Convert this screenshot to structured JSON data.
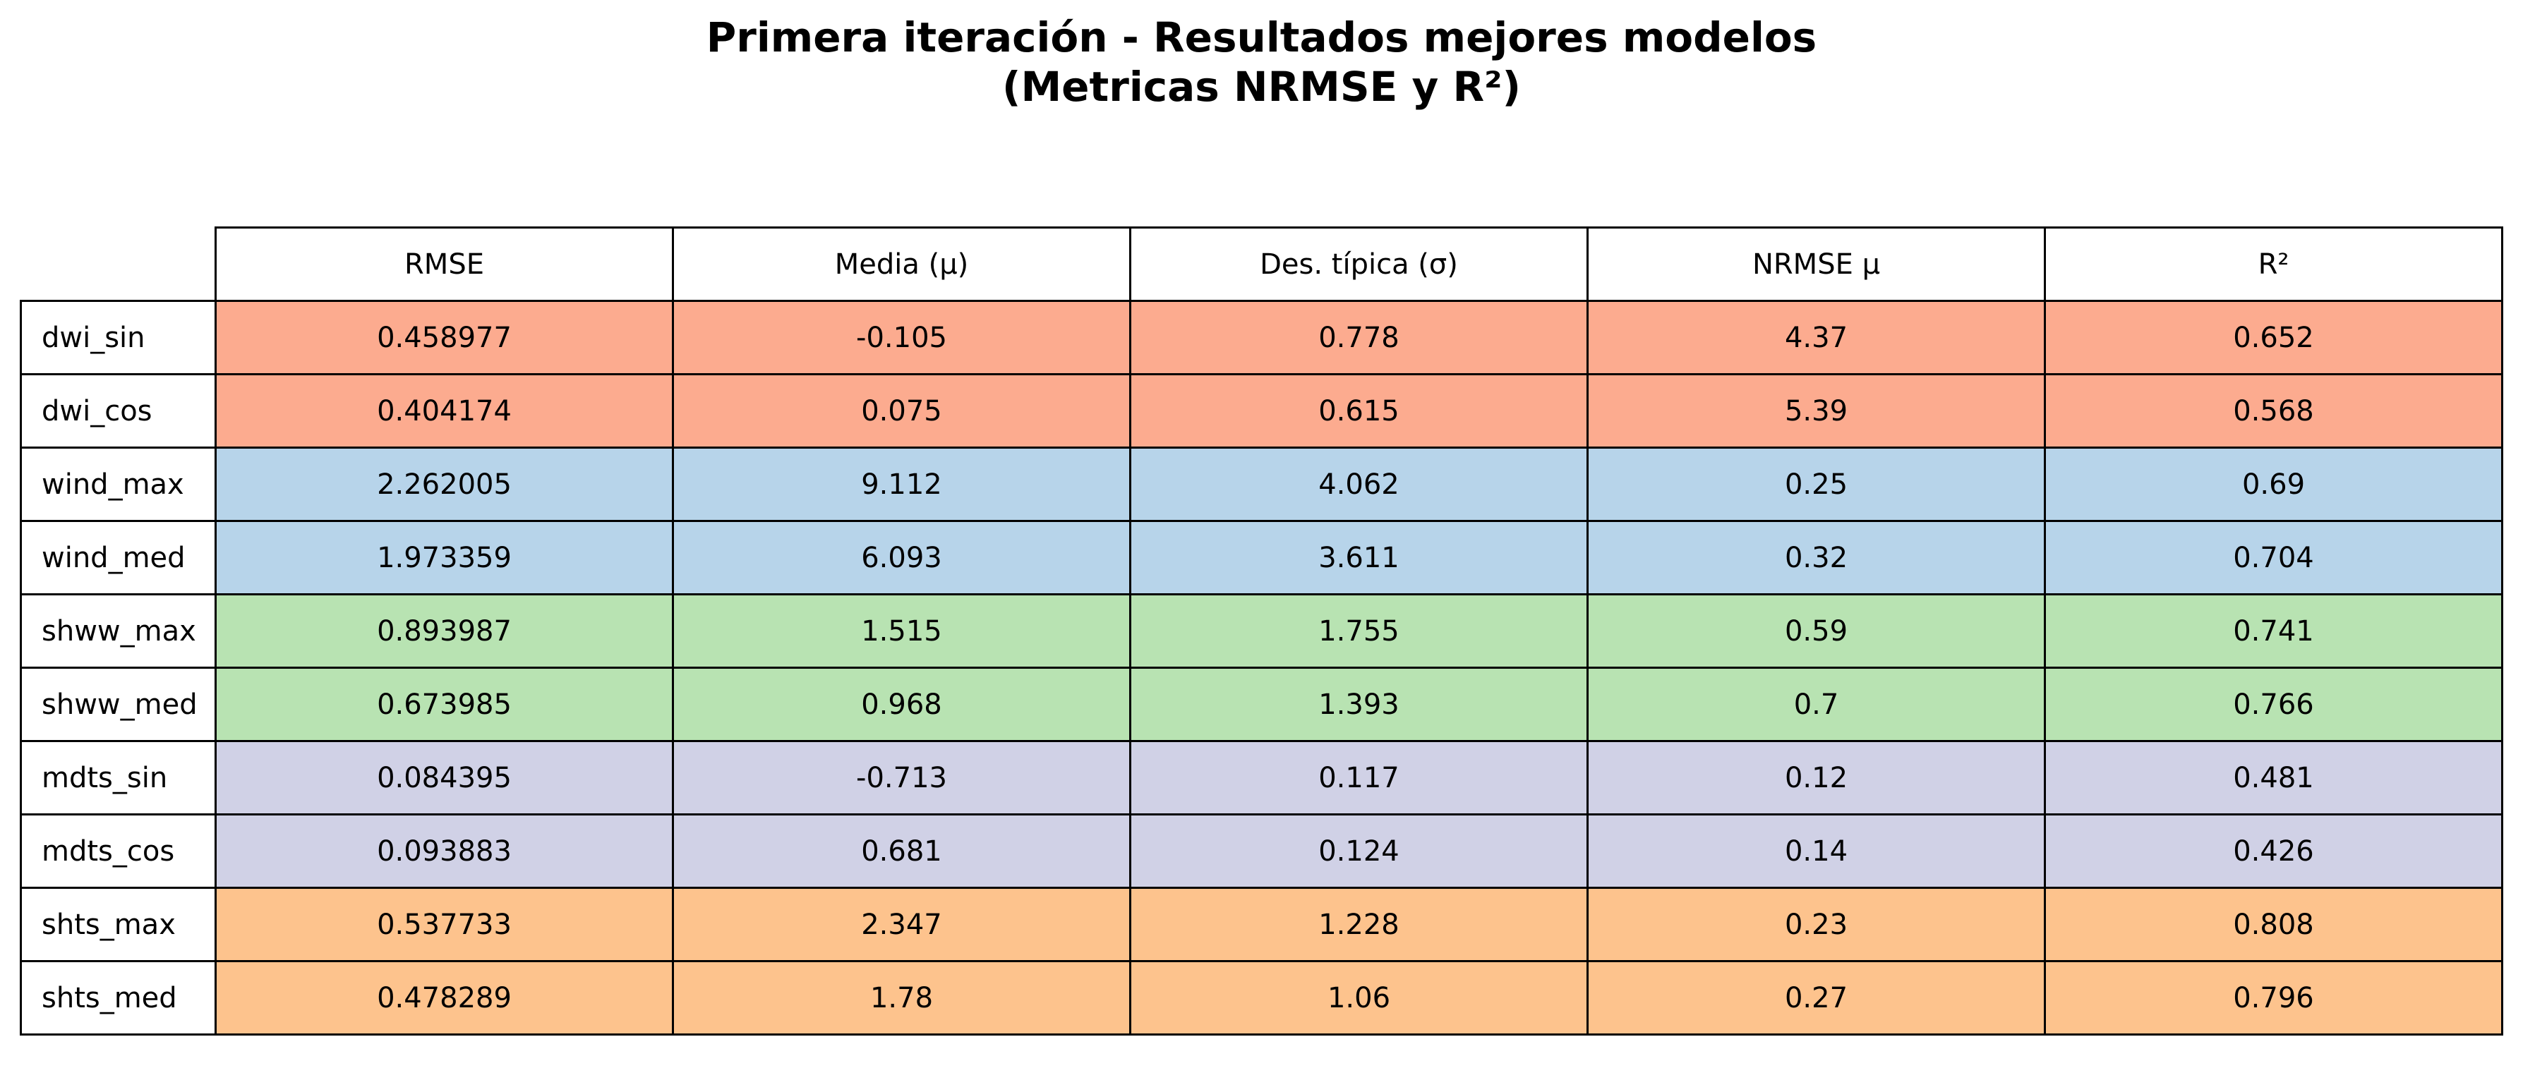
{
  "chart_data": {
    "type": "table",
    "title_line1": "Primera iteración - Resultados mejores modelos",
    "title_line2": "(Metricas NRMSE y R²)",
    "columns": [
      "RMSE",
      "Media (μ)",
      "Des. típica (σ)",
      "NRMSE μ",
      "R²"
    ],
    "rows": [
      {
        "label": "dwi_sin",
        "color": "#fcab8f",
        "values": [
          "0.458977",
          "-0.105",
          "0.778",
          "4.37",
          "0.652"
        ]
      },
      {
        "label": "dwi_cos",
        "color": "#fcab8f",
        "values": [
          "0.404174",
          "0.075",
          "0.615",
          "5.39",
          "0.568"
        ]
      },
      {
        "label": "wind_max",
        "color": "#b7d4ea",
        "values": [
          "2.262005",
          "9.112",
          "4.062",
          "0.25",
          "0.69"
        ]
      },
      {
        "label": "wind_med",
        "color": "#b7d4ea",
        "values": [
          "1.973359",
          "6.093",
          "3.611",
          "0.32",
          "0.704"
        ]
      },
      {
        "label": "shww_max",
        "color": "#b8e3b2",
        "values": [
          "0.893987",
          "1.515",
          "1.755",
          "0.59",
          "0.741"
        ]
      },
      {
        "label": "shww_med",
        "color": "#b8e3b2",
        "values": [
          "0.673985",
          "0.968",
          "1.393",
          "0.7",
          "0.766"
        ]
      },
      {
        "label": "mdts_sin",
        "color": "#d0d1e6",
        "values": [
          "0.084395",
          "-0.713",
          "0.117",
          "0.12",
          "0.481"
        ]
      },
      {
        "label": "mdts_cos",
        "color": "#d0d1e6",
        "values": [
          "0.093883",
          "0.681",
          "0.124",
          "0.14",
          "0.426"
        ]
      },
      {
        "label": "shts_max",
        "color": "#fdc38d",
        "values": [
          "0.537733",
          "2.347",
          "1.228",
          "0.23",
          "0.808"
        ]
      },
      {
        "label": "shts_med",
        "color": "#fdc38d",
        "values": [
          "0.478289",
          "1.78",
          "1.06",
          "0.27",
          "0.796"
        ]
      }
    ]
  }
}
